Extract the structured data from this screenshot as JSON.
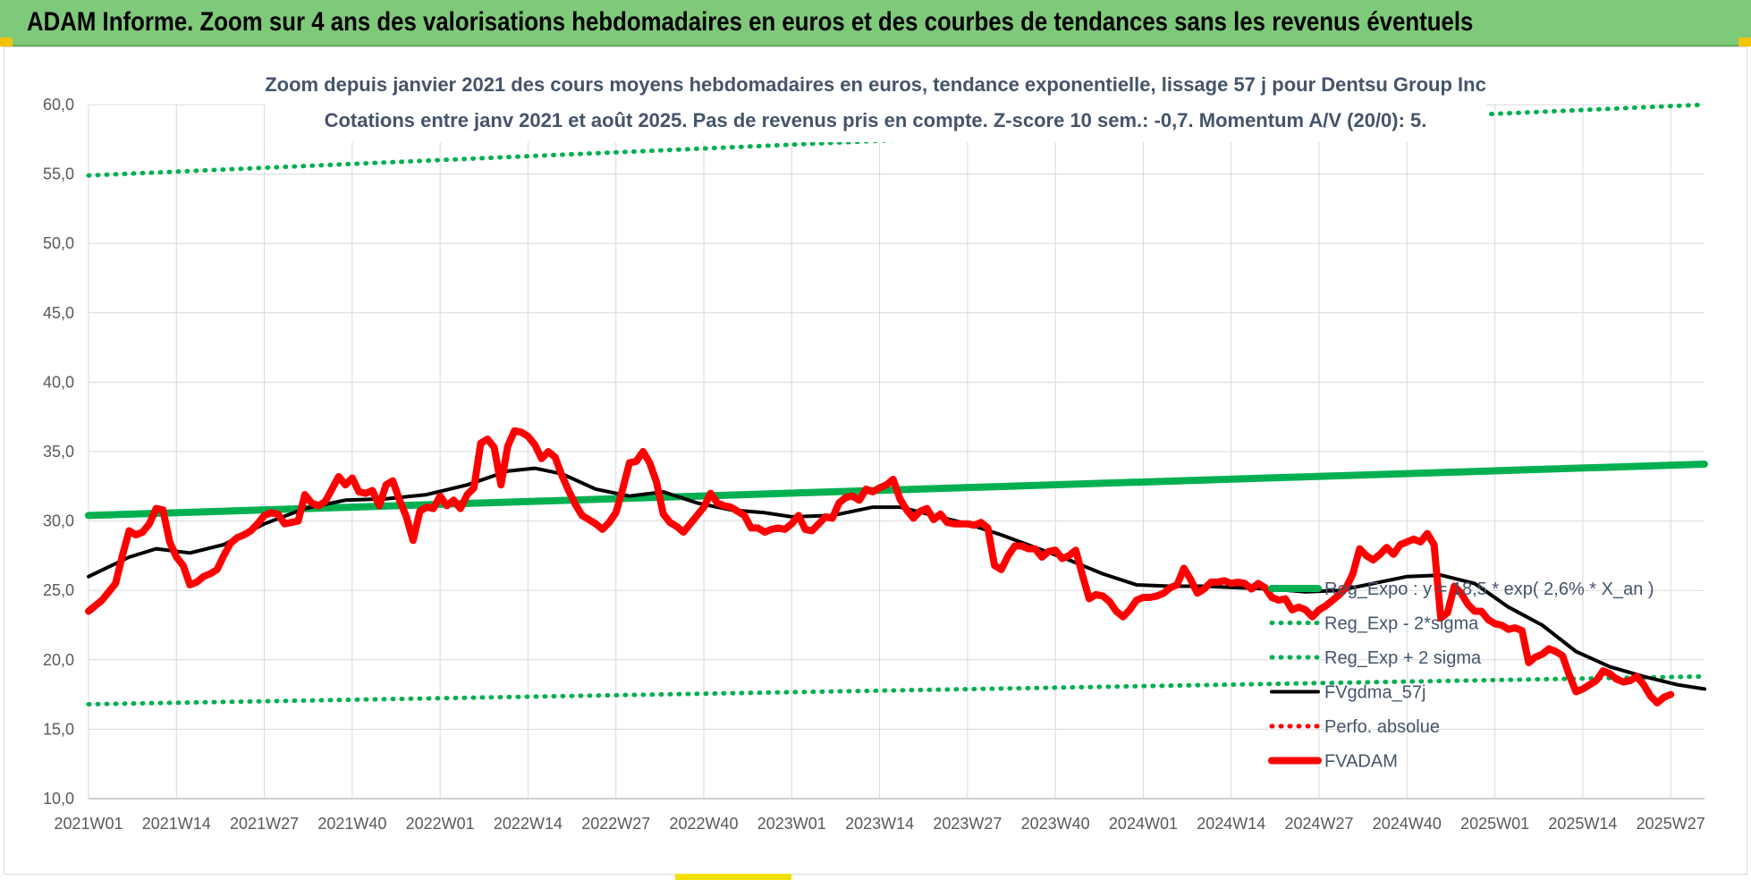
{
  "header": {
    "title": "ADAM Informe. Zoom sur 4 ans des valorisations hebdomadaires en euros et des courbes de tendances sans les revenus éventuels"
  },
  "colors": {
    "banner": "#7fc97a",
    "trend": "#00b050",
    "smooth": "#000000",
    "price": "#ff0000",
    "grid": "#d9d9d9"
  },
  "chart_data": {
    "type": "line",
    "title": "Zoom depuis janvier 2021 des cours moyens hebdomadaires en euros, tendance exponentielle, lissage 57 j pour Dentsu Group Inc",
    "subtitle": "Cotations entre janv 2021 et août 2025.  Pas de revenus pris en compte. Z-score 10 sem.: -0,7. Momentum A/V (20/0): 5.",
    "xlabel": "",
    "ylabel": "",
    "ylim": [
      10,
      60
    ],
    "yticks": [
      "10,0",
      "15,0",
      "20,0",
      "25,0",
      "30,0",
      "35,0",
      "40,0",
      "45,0",
      "50,0",
      "55,0",
      "60,0"
    ],
    "xlim": [
      0,
      239
    ],
    "xticks": [
      {
        "pos": 0,
        "label": "2021W01"
      },
      {
        "pos": 13,
        "label": "2021W14"
      },
      {
        "pos": 26,
        "label": "2021W27"
      },
      {
        "pos": 39,
        "label": "2021W40"
      },
      {
        "pos": 52,
        "label": "2022W01"
      },
      {
        "pos": 65,
        "label": "2022W14"
      },
      {
        "pos": 78,
        "label": "2022W27"
      },
      {
        "pos": 91,
        "label": "2022W40"
      },
      {
        "pos": 104,
        "label": "2023W01"
      },
      {
        "pos": 117,
        "label": "2023W14"
      },
      {
        "pos": 130,
        "label": "2023W27"
      },
      {
        "pos": 143,
        "label": "2023W40"
      },
      {
        "pos": 156,
        "label": "2024W01"
      },
      {
        "pos": 169,
        "label": "2024W14"
      },
      {
        "pos": 182,
        "label": "2024W27"
      },
      {
        "pos": 195,
        "label": "2024W40"
      },
      {
        "pos": 208,
        "label": "2025W01"
      },
      {
        "pos": 221,
        "label": "2025W14"
      },
      {
        "pos": 234,
        "label": "2025W27"
      }
    ],
    "grid": true,
    "legend_position": "bottom-right",
    "series": [
      {
        "name": "Reg_Expo : y = 18,5 * exp( 2,6% *  X_an )",
        "style": "thick-solid",
        "color": "#00b050",
        "points": [
          [
            0,
            30.4
          ],
          [
            239,
            34.1
          ]
        ]
      },
      {
        "name": "Reg_Exp - 2*sigma",
        "style": "dotted",
        "color": "#00b050",
        "points": [
          [
            0,
            16.8
          ],
          [
            239,
            18.8
          ]
        ]
      },
      {
        "name": "Reg_Exp + 2 sigma",
        "style": "dotted",
        "color": "#00b050",
        "points": [
          [
            0,
            54.9
          ],
          [
            239,
            60.0
          ]
        ]
      },
      {
        "name": "FVgdma_57j",
        "style": "solid",
        "color": "#000000",
        "points": [
          [
            0,
            26.0
          ],
          [
            6,
            27.4
          ],
          [
            10,
            28.0
          ],
          [
            15,
            27.7
          ],
          [
            20,
            28.3
          ],
          [
            26,
            29.8
          ],
          [
            32,
            30.9
          ],
          [
            38,
            31.5
          ],
          [
            44,
            31.6
          ],
          [
            50,
            31.9
          ],
          [
            56,
            32.6
          ],
          [
            62,
            33.6
          ],
          [
            66,
            33.8
          ],
          [
            70,
            33.4
          ],
          [
            75,
            32.3
          ],
          [
            80,
            31.8
          ],
          [
            85,
            32.1
          ],
          [
            90,
            31.3
          ],
          [
            95,
            30.8
          ],
          [
            100,
            30.6
          ],
          [
            104,
            30.3
          ],
          [
            110,
            30.4
          ],
          [
            116,
            31.0
          ],
          [
            120,
            31.0
          ],
          [
            125,
            30.4
          ],
          [
            130,
            29.8
          ],
          [
            135,
            29.0
          ],
          [
            140,
            28.1
          ],
          [
            145,
            27.2
          ],
          [
            150,
            26.2
          ],
          [
            155,
            25.4
          ],
          [
            160,
            25.3
          ],
          [
            165,
            25.3
          ],
          [
            170,
            25.2
          ],
          [
            175,
            25.1
          ],
          [
            180,
            24.9
          ],
          [
            185,
            25.0
          ],
          [
            190,
            25.5
          ],
          [
            195,
            26.0
          ],
          [
            200,
            26.1
          ],
          [
            205,
            25.5
          ],
          [
            210,
            23.8
          ],
          [
            215,
            22.5
          ],
          [
            220,
            20.6
          ],
          [
            225,
            19.5
          ],
          [
            230,
            18.8
          ],
          [
            235,
            18.2
          ],
          [
            239,
            17.9
          ]
        ]
      },
      {
        "name": "Perfo. absolue",
        "style": "dotted",
        "color": "#ff0000",
        "points": []
      },
      {
        "name": "FVADAM",
        "style": "thick-solid",
        "color": "#ff0000",
        "points": [
          [
            0,
            23.5
          ],
          [
            2,
            24.3
          ],
          [
            4,
            25.5
          ],
          [
            5,
            27.5
          ],
          [
            6,
            29.3
          ],
          [
            7,
            29.0
          ],
          [
            8,
            29.2
          ],
          [
            9,
            29.8
          ],
          [
            10,
            30.9
          ],
          [
            11,
            30.8
          ],
          [
            12,
            28.5
          ],
          [
            13,
            27.4
          ],
          [
            14,
            26.8
          ],
          [
            15,
            25.4
          ],
          [
            16,
            25.6
          ],
          [
            17,
            26.0
          ],
          [
            18,
            26.2
          ],
          [
            19,
            26.5
          ],
          [
            20,
            27.5
          ],
          [
            21,
            28.4
          ],
          [
            22,
            28.8
          ],
          [
            23,
            29.0
          ],
          [
            24,
            29.3
          ],
          [
            25,
            29.8
          ],
          [
            26,
            30.4
          ],
          [
            27,
            30.6
          ],
          [
            28,
            30.5
          ],
          [
            29,
            29.8
          ],
          [
            30,
            29.9
          ],
          [
            31,
            30.0
          ],
          [
            32,
            31.9
          ],
          [
            33,
            31.3
          ],
          [
            34,
            31.1
          ],
          [
            35,
            31.4
          ],
          [
            36,
            32.3
          ],
          [
            37,
            33.2
          ],
          [
            38,
            32.6
          ],
          [
            39,
            33.1
          ],
          [
            40,
            32.1
          ],
          [
            41,
            32.0
          ],
          [
            42,
            32.2
          ],
          [
            43,
            31.1
          ],
          [
            44,
            32.6
          ],
          [
            45,
            32.9
          ],
          [
            46,
            31.5
          ],
          [
            47,
            30.3
          ],
          [
            48,
            28.6
          ],
          [
            49,
            30.7
          ],
          [
            50,
            31.0
          ],
          [
            51,
            30.9
          ],
          [
            52,
            31.8
          ],
          [
            53,
            31.1
          ],
          [
            54,
            31.5
          ],
          [
            55,
            30.9
          ],
          [
            56,
            31.9
          ],
          [
            57,
            32.4
          ],
          [
            58,
            35.6
          ],
          [
            59,
            35.9
          ],
          [
            60,
            35.3
          ],
          [
            61,
            32.6
          ],
          [
            62,
            35.4
          ],
          [
            63,
            36.5
          ],
          [
            64,
            36.4
          ],
          [
            65,
            36.1
          ],
          [
            66,
            35.5
          ],
          [
            67,
            34.5
          ],
          [
            68,
            35.0
          ],
          [
            69,
            34.6
          ],
          [
            70,
            33.3
          ],
          [
            71,
            32.2
          ],
          [
            72,
            31.2
          ],
          [
            73,
            30.4
          ],
          [
            74,
            30.1
          ],
          [
            75,
            29.8
          ],
          [
            76,
            29.4
          ],
          [
            77,
            29.9
          ],
          [
            78,
            30.6
          ],
          [
            79,
            32.3
          ],
          [
            80,
            34.2
          ],
          [
            81,
            34.3
          ],
          [
            82,
            35.0
          ],
          [
            83,
            34.2
          ],
          [
            84,
            32.8
          ],
          [
            85,
            30.5
          ],
          [
            86,
            29.9
          ],
          [
            87,
            29.6
          ],
          [
            88,
            29.2
          ],
          [
            89,
            29.8
          ],
          [
            90,
            30.4
          ],
          [
            91,
            31.0
          ],
          [
            92,
            32.0
          ],
          [
            93,
            31.3
          ],
          [
            94,
            31.1
          ],
          [
            95,
            31.0
          ],
          [
            96,
            30.7
          ],
          [
            97,
            30.4
          ],
          [
            98,
            29.5
          ],
          [
            99,
            29.5
          ],
          [
            100,
            29.2
          ],
          [
            101,
            29.4
          ],
          [
            102,
            29.5
          ],
          [
            103,
            29.4
          ],
          [
            104,
            29.8
          ],
          [
            105,
            30.4
          ],
          [
            106,
            29.4
          ],
          [
            107,
            29.3
          ],
          [
            108,
            29.8
          ],
          [
            109,
            30.3
          ],
          [
            110,
            30.2
          ],
          [
            111,
            31.3
          ],
          [
            112,
            31.7
          ],
          [
            113,
            31.8
          ],
          [
            114,
            31.5
          ],
          [
            115,
            32.3
          ],
          [
            116,
            32.1
          ],
          [
            117,
            32.4
          ],
          [
            118,
            32.6
          ],
          [
            119,
            33.0
          ],
          [
            120,
            31.6
          ],
          [
            121,
            30.8
          ],
          [
            122,
            30.2
          ],
          [
            123,
            30.7
          ],
          [
            124,
            30.9
          ],
          [
            125,
            30.1
          ],
          [
            126,
            30.5
          ],
          [
            127,
            29.9
          ],
          [
            128,
            29.8
          ],
          [
            129,
            29.8
          ],
          [
            130,
            29.8
          ],
          [
            131,
            29.7
          ],
          [
            132,
            29.9
          ],
          [
            133,
            29.5
          ],
          [
            134,
            26.8
          ],
          [
            135,
            26.5
          ],
          [
            136,
            27.5
          ],
          [
            137,
            28.2
          ],
          [
            138,
            28.2
          ],
          [
            139,
            28.0
          ],
          [
            140,
            28.0
          ],
          [
            141,
            27.4
          ],
          [
            142,
            27.8
          ],
          [
            143,
            27.9
          ],
          [
            144,
            27.3
          ],
          [
            145,
            27.5
          ],
          [
            146,
            27.9
          ],
          [
            147,
            26.1
          ],
          [
            148,
            24.4
          ],
          [
            149,
            24.7
          ],
          [
            150,
            24.6
          ],
          [
            151,
            24.2
          ],
          [
            152,
            23.5
          ],
          [
            153,
            23.1
          ],
          [
            154,
            23.6
          ],
          [
            155,
            24.3
          ],
          [
            156,
            24.5
          ],
          [
            157,
            24.5
          ],
          [
            158,
            24.6
          ],
          [
            159,
            24.8
          ],
          [
            160,
            25.2
          ],
          [
            161,
            25.4
          ],
          [
            162,
            26.6
          ],
          [
            163,
            25.8
          ],
          [
            164,
            24.8
          ],
          [
            165,
            25.1
          ],
          [
            166,
            25.6
          ],
          [
            167,
            25.6
          ],
          [
            168,
            25.7
          ],
          [
            169,
            25.5
          ],
          [
            170,
            25.6
          ],
          [
            171,
            25.5
          ],
          [
            172,
            25.1
          ],
          [
            173,
            25.5
          ],
          [
            174,
            25.2
          ],
          [
            175,
            24.5
          ],
          [
            176,
            24.3
          ],
          [
            177,
            24.4
          ],
          [
            178,
            23.6
          ],
          [
            179,
            23.8
          ],
          [
            180,
            23.6
          ],
          [
            181,
            23.1
          ],
          [
            182,
            23.6
          ],
          [
            183,
            23.9
          ],
          [
            184,
            24.3
          ],
          [
            185,
            24.7
          ],
          [
            186,
            25.2
          ],
          [
            187,
            26.2
          ],
          [
            188,
            28.0
          ],
          [
            189,
            27.5
          ],
          [
            190,
            27.2
          ],
          [
            191,
            27.6
          ],
          [
            192,
            28.1
          ],
          [
            193,
            27.6
          ],
          [
            194,
            28.3
          ],
          [
            195,
            28.5
          ],
          [
            196,
            28.7
          ],
          [
            197,
            28.5
          ],
          [
            198,
            29.1
          ],
          [
            199,
            28.3
          ],
          [
            200,
            23.0
          ],
          [
            201,
            23.4
          ],
          [
            202,
            25.3
          ],
          [
            203,
            24.8
          ],
          [
            204,
            24.0
          ],
          [
            205,
            23.5
          ],
          [
            206,
            23.5
          ],
          [
            207,
            22.9
          ],
          [
            208,
            22.6
          ],
          [
            209,
            22.5
          ],
          [
            210,
            22.2
          ],
          [
            211,
            22.3
          ],
          [
            212,
            22.1
          ],
          [
            213,
            19.8
          ],
          [
            214,
            20.2
          ],
          [
            215,
            20.4
          ],
          [
            216,
            20.8
          ],
          [
            217,
            20.6
          ],
          [
            218,
            20.3
          ],
          [
            219,
            18.9
          ],
          [
            220,
            17.7
          ],
          [
            221,
            17.9
          ],
          [
            222,
            18.2
          ],
          [
            223,
            18.5
          ],
          [
            224,
            19.2
          ],
          [
            225,
            19.0
          ],
          [
            226,
            18.6
          ],
          [
            227,
            18.4
          ],
          [
            228,
            18.5
          ],
          [
            229,
            18.8
          ],
          [
            230,
            18.2
          ],
          [
            231,
            17.4
          ],
          [
            232,
            16.9
          ],
          [
            233,
            17.3
          ],
          [
            234,
            17.5
          ]
        ]
      }
    ]
  }
}
